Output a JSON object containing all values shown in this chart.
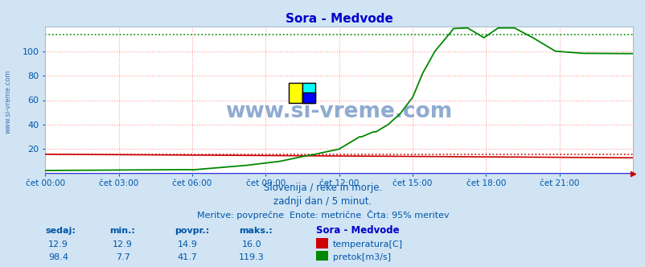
{
  "title": "Sora - Medvode",
  "title_color": "#0000cc",
  "background_color": "#d0e4f4",
  "plot_bg_color": "#ffffff",
  "grid_color": "#ff9999",
  "x_label_color": "#0055aa",
  "y_label_color": "#0055aa",
  "temp_color": "#cc0000",
  "flow_color": "#008800",
  "temp_dotted_color": "#cc0000",
  "flow_dotted_color": "#008800",
  "blue_baseline_color": "#0000ff",
  "xlim": [
    0,
    288
  ],
  "ylim": [
    0,
    120
  ],
  "yticks": [
    20,
    40,
    60,
    80,
    100
  ],
  "xtick_labels": [
    "čet 00:00",
    "čet 03:00",
    "čet 06:00",
    "čet 09:00",
    "čet 12:00",
    "čet 15:00",
    "čet 18:00",
    "čet 21:00"
  ],
  "xtick_positions": [
    0,
    36,
    72,
    108,
    144,
    180,
    216,
    252
  ],
  "subtitle1": "Slovenija / reke in morje.",
  "subtitle2": "zadnji dan / 5 minut.",
  "subtitle3": "Meritve: povprečne  Enote: metrične  Črta: 95% meritev",
  "watermark": "www.si-vreme.com",
  "watermark_color": "#3366aa",
  "legend_title": "Sora - Medvode",
  "legend_color": "#0000cc",
  "text_color": "#0055aa",
  "temp_95pct": 15.5,
  "flow_95pct": 113.5,
  "temp_max": 16.0,
  "temp_min": 12.9,
  "temp_avg": 14.9,
  "flow_max": 119.3,
  "flow_min": 7.7,
  "flow_avg": 41.7,
  "temp_now": 12.9,
  "flow_now": 98.4
}
